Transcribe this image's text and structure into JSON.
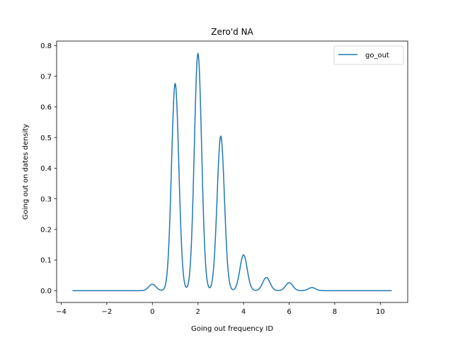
{
  "chart_data": {
    "type": "line",
    "title": "Zero'd NA",
    "xlabel": "Going out frequency ID",
    "ylabel": "Going out on dates density",
    "xlim": [
      -4.2,
      11.2
    ],
    "ylim": [
      -0.0385,
      0.815
    ],
    "x_ticks": [
      -4,
      -2,
      0,
      2,
      4,
      6,
      8,
      10
    ],
    "x_tick_labels": [
      "−4",
      "−2",
      "0",
      "2",
      "4",
      "6",
      "8",
      "10"
    ],
    "y_ticks": [
      0.0,
      0.1,
      0.2,
      0.3,
      0.4,
      0.5,
      0.6,
      0.7,
      0.8
    ],
    "y_tick_labels": [
      "0.0",
      "0.1",
      "0.2",
      "0.3",
      "0.4",
      "0.5",
      "0.6",
      "0.7",
      "0.8"
    ],
    "grid": false,
    "legend_position": "top-right",
    "color": "#1f77b4",
    "series": [
      {
        "name": "go_out",
        "x_range": [
          -3.5,
          10.5
        ],
        "peaks": [
          {
            "x": 0,
            "y": 0.021
          },
          {
            "x": 1,
            "y": 0.677
          },
          {
            "x": 2,
            "y": 0.775
          },
          {
            "x": 3,
            "y": 0.505
          },
          {
            "x": 4,
            "y": 0.117
          },
          {
            "x": 5,
            "y": 0.043
          },
          {
            "x": 6,
            "y": 0.026
          },
          {
            "x": 7,
            "y": 0.01
          }
        ]
      }
    ]
  }
}
